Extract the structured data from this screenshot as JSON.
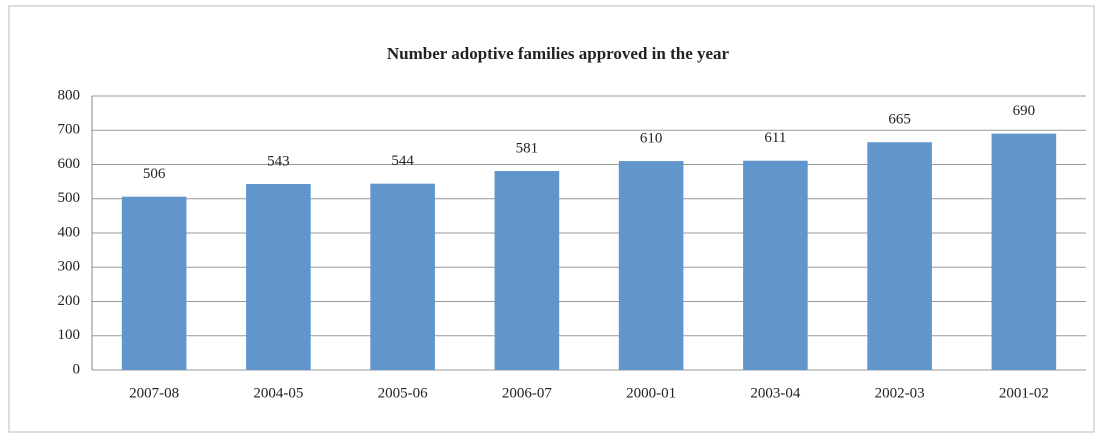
{
  "chart_data": {
    "type": "bar",
    "title": "Number adoptive families approved in the year",
    "categories": [
      "2007-08",
      "2004-05",
      "2005-06",
      "2006-07",
      "2000-01",
      "2003-04",
      "2002-03",
      "2001-02"
    ],
    "values": [
      506,
      543,
      544,
      581,
      610,
      611,
      665,
      690
    ],
    "color": "#6096cc",
    "ylim": [
      0,
      800
    ],
    "yticks": [
      0,
      100,
      200,
      300,
      400,
      500,
      600,
      700,
      800
    ],
    "grid": true
  }
}
